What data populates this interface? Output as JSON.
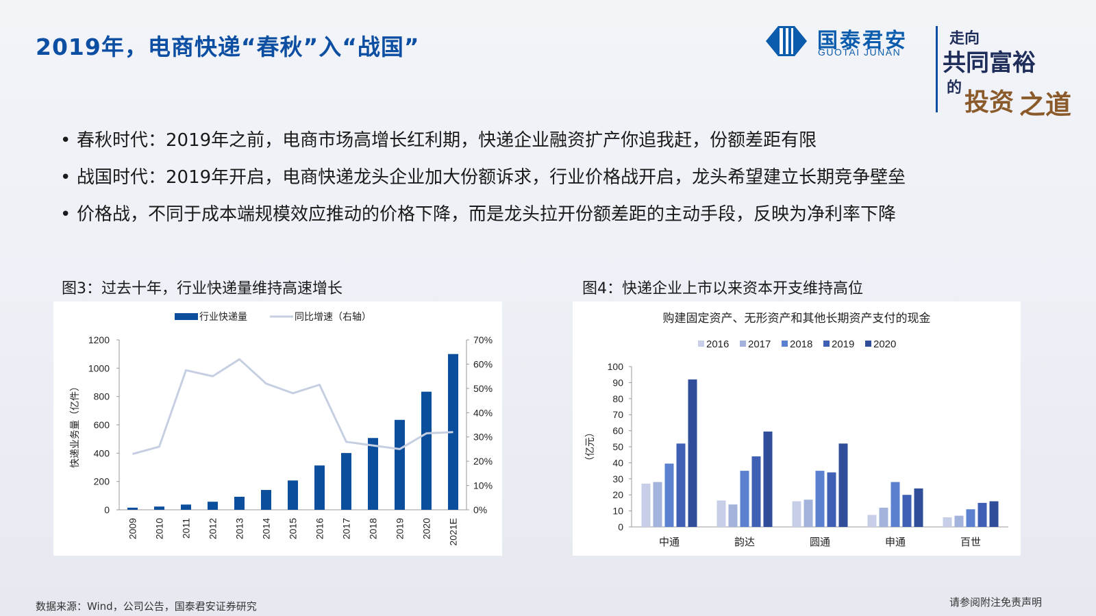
{
  "header": {
    "title": "2019年，电商快递“春秋”入“战国”",
    "logo_cn": "国泰君安",
    "logo_en": "GUOTAI JUNAN",
    "slogan": {
      "line1": "走向",
      "line2": "共同富裕",
      "line3": "的",
      "line4": "投资",
      "line5": "之道"
    }
  },
  "bullets": [
    "春秋时代：2019年之前，电商市场高增长红利期，快递企业融资扩产你追我赶，份额差距有限",
    "战国时代：2019年开启，电商快递龙头企业加大份额诉求，行业价格战开启，龙头希望建立长期竞争壁垒",
    "价格战，不同于成本端规模效应推动的价格下降，而是龙头拉开份额差距的主动手段，反映为净利率下降"
  ],
  "fig3_caption": "图3：过去十年，行业快递量维持高速增长",
  "fig4_caption": "图4：快递企业上市以来资本开支维持高位",
  "footer": {
    "source": "数据来源：Wind，公司公告，国泰君安证券研究",
    "disclaimer": "请参阅附注免责声明"
  },
  "colors": {
    "title_blue": "#0b4ea2",
    "bar_blue": "#0b4f9c",
    "line_light": "#c6cfe2",
    "s2016": "#c7cfe8",
    "s2017": "#a3b3dc",
    "s2018": "#5a80cf",
    "s2019": "#3f5fb5",
    "s2020": "#2f4d98"
  },
  "chart_data": [
    {
      "type": "bar",
      "title": "",
      "categories": [
        "2009",
        "2010",
        "2011",
        "2012",
        "2013",
        "2014",
        "2015",
        "2016",
        "2017",
        "2018",
        "2019",
        "2020",
        "2021E"
      ],
      "series": [
        {
          "name": "行业快递量",
          "type": "bar",
          "axis": "left",
          "values": [
            15,
            23,
            37,
            57,
            92,
            140,
            207,
            313,
            401,
            507,
            635,
            834,
            1100
          ]
        },
        {
          "name": "同比增速（右轴）",
          "type": "line",
          "axis": "right",
          "values": [
            23,
            26,
            57.5,
            55,
            62,
            52,
            48,
            51.5,
            28,
            26.5,
            25,
            31.5,
            32
          ]
        }
      ],
      "ylabel": "快递业务量（亿件）",
      "ylim": [
        0,
        1200
      ],
      "yticks": [
        "0",
        "200",
        "400",
        "600",
        "800",
        "1000",
        "1200"
      ],
      "y2lim": [
        0,
        70
      ],
      "y2ticks": [
        "0%",
        "10%",
        "20%",
        "30%",
        "40%",
        "50%",
        "60%",
        "70%"
      ],
      "legend": "top-center",
      "grid": false
    },
    {
      "type": "bar",
      "title": "购建固定资产、无形资产和其他长期资产支付的现金",
      "categories": [
        "中通",
        "韵达",
        "圆通",
        "申通",
        "百世"
      ],
      "series": [
        {
          "name": "2016",
          "values": [
            27,
            16.5,
            16,
            7.5,
            6
          ]
        },
        {
          "name": "2017",
          "values": [
            28,
            14,
            17,
            12,
            7
          ]
        },
        {
          "name": "2018",
          "values": [
            39.5,
            35,
            35,
            28,
            11
          ]
        },
        {
          "name": "2019",
          "values": [
            52,
            44,
            34,
            20,
            15
          ]
        },
        {
          "name": "2020",
          "values": [
            92,
            59.5,
            52,
            24,
            16
          ]
        }
      ],
      "ylabel": "（亿元）",
      "ylim": [
        0,
        100
      ],
      "yticks": [
        "0",
        "10",
        "20",
        "30",
        "40",
        "50",
        "60",
        "70",
        "80",
        "90",
        "100"
      ],
      "legend": "top-center",
      "grid": false
    }
  ]
}
